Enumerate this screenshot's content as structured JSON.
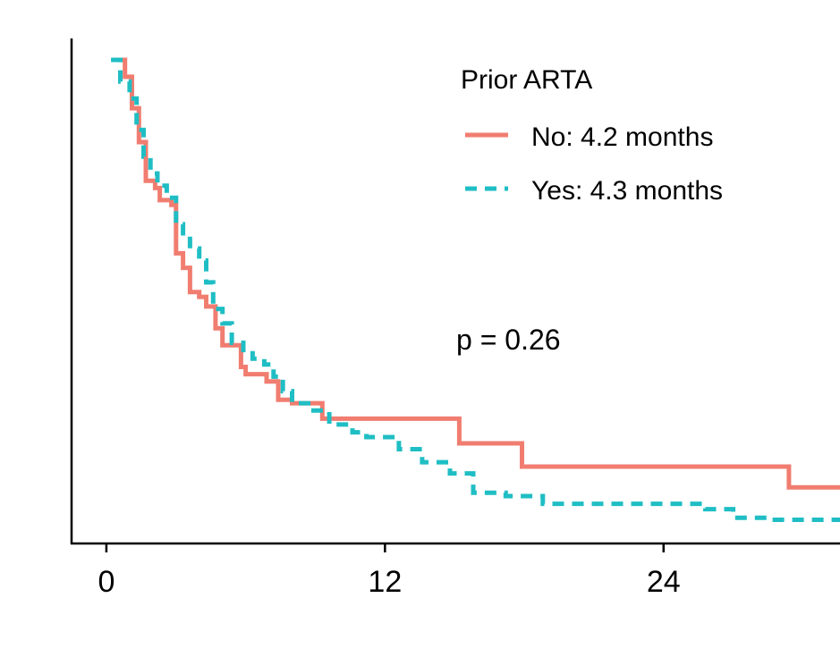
{
  "chart_data": {
    "type": "line",
    "subtype": "kaplan-meier-step",
    "title": "",
    "xlabel": "",
    "ylabel": "",
    "xlim": [
      -1.5,
      31.6
    ],
    "ylim": [
      0,
      1
    ],
    "x_ticks": [
      {
        "value": 0,
        "label": "0"
      },
      {
        "value": 12,
        "label": "12"
      },
      {
        "value": 24,
        "label": "24"
      }
    ],
    "legend": {
      "title": "Prior ARTA",
      "position": "top-right",
      "entries": [
        {
          "label": "No: 4.2 months",
          "series": "No"
        },
        {
          "label": "Yes: 4.3 months",
          "series": "Yes"
        }
      ]
    },
    "annotation": "p = 0.26",
    "series": [
      {
        "name": "No",
        "color": "#F07D70",
        "style": "solid",
        "points": [
          [
            0.4,
            1.0
          ],
          [
            0.8,
            0.965
          ],
          [
            1.1,
            0.9
          ],
          [
            1.4,
            0.83
          ],
          [
            1.7,
            0.75
          ],
          [
            2.1,
            0.735
          ],
          [
            2.3,
            0.71
          ],
          [
            2.8,
            0.7
          ],
          [
            3.0,
            0.6
          ],
          [
            3.3,
            0.57
          ],
          [
            3.6,
            0.52
          ],
          [
            4.0,
            0.51
          ],
          [
            4.3,
            0.49
          ],
          [
            4.7,
            0.445
          ],
          [
            5.0,
            0.41
          ],
          [
            5.8,
            0.365
          ],
          [
            6.0,
            0.35
          ],
          [
            6.9,
            0.335
          ],
          [
            7.4,
            0.297
          ],
          [
            8.0,
            0.29
          ],
          [
            9.3,
            0.258
          ],
          [
            15.2,
            0.207
          ],
          [
            17.9,
            0.159
          ],
          [
            29.4,
            0.116
          ],
          [
            31.6,
            0.116
          ]
        ]
      },
      {
        "name": "Yes",
        "color": "#1FBEC4",
        "style": "dashed",
        "points": [
          [
            0.2,
            1.0
          ],
          [
            0.6,
            0.955
          ],
          [
            1.0,
            0.92
          ],
          [
            1.3,
            0.855
          ],
          [
            1.6,
            0.8
          ],
          [
            1.9,
            0.765
          ],
          [
            2.2,
            0.74
          ],
          [
            2.6,
            0.715
          ],
          [
            3.0,
            0.66
          ],
          [
            3.3,
            0.63
          ],
          [
            3.6,
            0.61
          ],
          [
            4.0,
            0.585
          ],
          [
            4.3,
            0.54
          ],
          [
            4.6,
            0.485
          ],
          [
            5.0,
            0.455
          ],
          [
            5.4,
            0.415
          ],
          [
            5.9,
            0.4
          ],
          [
            6.3,
            0.382
          ],
          [
            6.8,
            0.37
          ],
          [
            7.2,
            0.345
          ],
          [
            7.6,
            0.315
          ],
          [
            8.0,
            0.29
          ],
          [
            8.8,
            0.275
          ],
          [
            9.6,
            0.246
          ],
          [
            10.6,
            0.23
          ],
          [
            11.2,
            0.22
          ],
          [
            12.6,
            0.195
          ],
          [
            13.6,
            0.168
          ],
          [
            14.8,
            0.145
          ],
          [
            15.8,
            0.105
          ],
          [
            17.2,
            0.098
          ],
          [
            18.8,
            0.082
          ],
          [
            21.1,
            0.082
          ],
          [
            25.8,
            0.071
          ],
          [
            27.0,
            0.053
          ],
          [
            28.6,
            0.049
          ],
          [
            31.6,
            0.049
          ]
        ]
      }
    ]
  }
}
